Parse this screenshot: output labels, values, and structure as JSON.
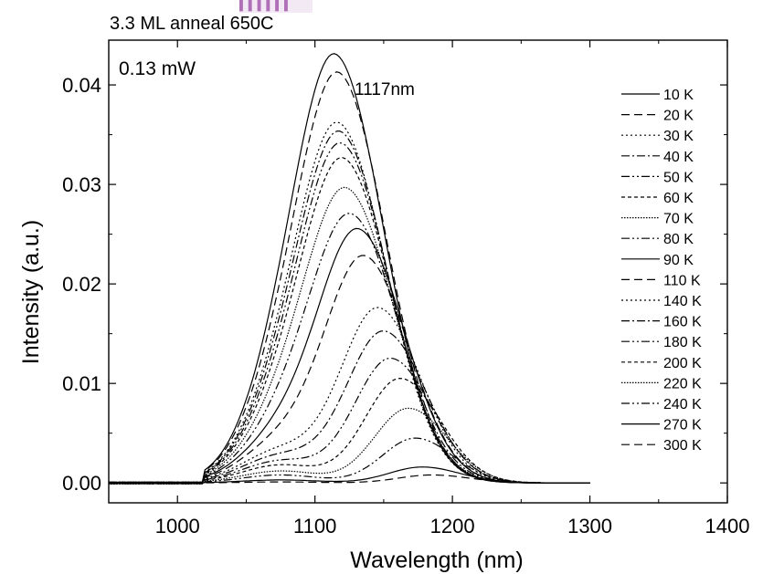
{
  "chart_data": {
    "type": "line",
    "title": "3.3 ML anneal 650C",
    "annotation_power": "0.13 mW",
    "annotation_peak": "1117nm",
    "xlabel": "Wavelength (nm)",
    "ylabel": "Intensity (a.u.)",
    "xlim": [
      950,
      1400
    ],
    "ylim": [
      -0.002,
      0.0445
    ],
    "x_ticks": [
      "1000",
      "1100",
      "1200",
      "1300",
      "1400"
    ],
    "y_ticks": [
      "0.00",
      "0.01",
      "0.02",
      "0.03",
      "0.04"
    ],
    "x_tick_values": [
      1000,
      1100,
      1200,
      1300,
      1400
    ],
    "y_tick_values": [
      0.0,
      0.01,
      0.02,
      0.03,
      0.04
    ],
    "x_range_of_data": [
      950,
      1300
    ],
    "legend_position": "right",
    "series": [
      {
        "name": "10 K",
        "line_style": "solid",
        "peak_nm": 1117,
        "peak_intensity": 0.0405,
        "width_nm": 40,
        "shoulder_intensity": 0.0075
      },
      {
        "name": "20 K",
        "line_style": "dash",
        "peak_nm": 1119,
        "peak_intensity": 0.039,
        "width_nm": 40,
        "shoulder_intensity": 0.0073
      },
      {
        "name": "30 K",
        "line_style": "dot",
        "peak_nm": 1119,
        "peak_intensity": 0.0342,
        "width_nm": 40,
        "shoulder_intensity": 0.0065
      },
      {
        "name": "40 K",
        "line_style": "dashdot",
        "peak_nm": 1120,
        "peak_intensity": 0.0335,
        "width_nm": 40,
        "shoulder_intensity": 0.0063
      },
      {
        "name": "50 K",
        "line_style": "dashdotdot",
        "peak_nm": 1121,
        "peak_intensity": 0.0325,
        "width_nm": 40,
        "shoulder_intensity": 0.006
      },
      {
        "name": "60 K",
        "line_style": "shortdash",
        "peak_nm": 1122,
        "peak_intensity": 0.0312,
        "width_nm": 40,
        "shoulder_intensity": 0.0057
      },
      {
        "name": "70 K",
        "line_style": "shortdot",
        "peak_nm": 1124,
        "peak_intensity": 0.0285,
        "width_nm": 40,
        "shoulder_intensity": 0.0052
      },
      {
        "name": "80 K",
        "line_style": "dashdotdot",
        "peak_nm": 1127,
        "peak_intensity": 0.0262,
        "width_nm": 40,
        "shoulder_intensity": 0.0047
      },
      {
        "name": "90 K",
        "line_style": "solid",
        "peak_nm": 1132,
        "peak_intensity": 0.025,
        "width_nm": 39,
        "shoulder_intensity": 0.0043
      },
      {
        "name": "110 K",
        "line_style": "dash",
        "peak_nm": 1136,
        "peak_intensity": 0.0225,
        "width_nm": 38,
        "shoulder_intensity": 0.0038
      },
      {
        "name": "140 K",
        "line_style": "dot",
        "peak_nm": 1146,
        "peak_intensity": 0.0175,
        "width_nm": 36,
        "shoulder_intensity": 0.0032
      },
      {
        "name": "160 K",
        "line_style": "dashdot",
        "peak_nm": 1150,
        "peak_intensity": 0.0152,
        "width_nm": 36,
        "shoulder_intensity": 0.0027
      },
      {
        "name": "180 K",
        "line_style": "dashdotdot",
        "peak_nm": 1155,
        "peak_intensity": 0.0125,
        "width_nm": 35,
        "shoulder_intensity": 0.0022
      },
      {
        "name": "200 K",
        "line_style": "shortdash",
        "peak_nm": 1162,
        "peak_intensity": 0.0105,
        "width_nm": 34,
        "shoulder_intensity": 0.0018
      },
      {
        "name": "220 K",
        "line_style": "shortdot",
        "peak_nm": 1168,
        "peak_intensity": 0.0075,
        "width_nm": 33,
        "shoulder_intensity": 0.0012
      },
      {
        "name": "240 K",
        "line_style": "dashdotdot",
        "peak_nm": 1173,
        "peak_intensity": 0.0045,
        "width_nm": 32,
        "shoulder_intensity": 0.0008
      },
      {
        "name": "270 K",
        "line_style": "solid",
        "peak_nm": 1178,
        "peak_intensity": 0.0016,
        "width_nm": 32,
        "shoulder_intensity": 0.0003
      },
      {
        "name": "300 K",
        "line_style": "dash",
        "peak_nm": 1185,
        "peak_intensity": 0.0008,
        "width_nm": 32,
        "shoulder_intensity": 0.0001
      }
    ]
  }
}
